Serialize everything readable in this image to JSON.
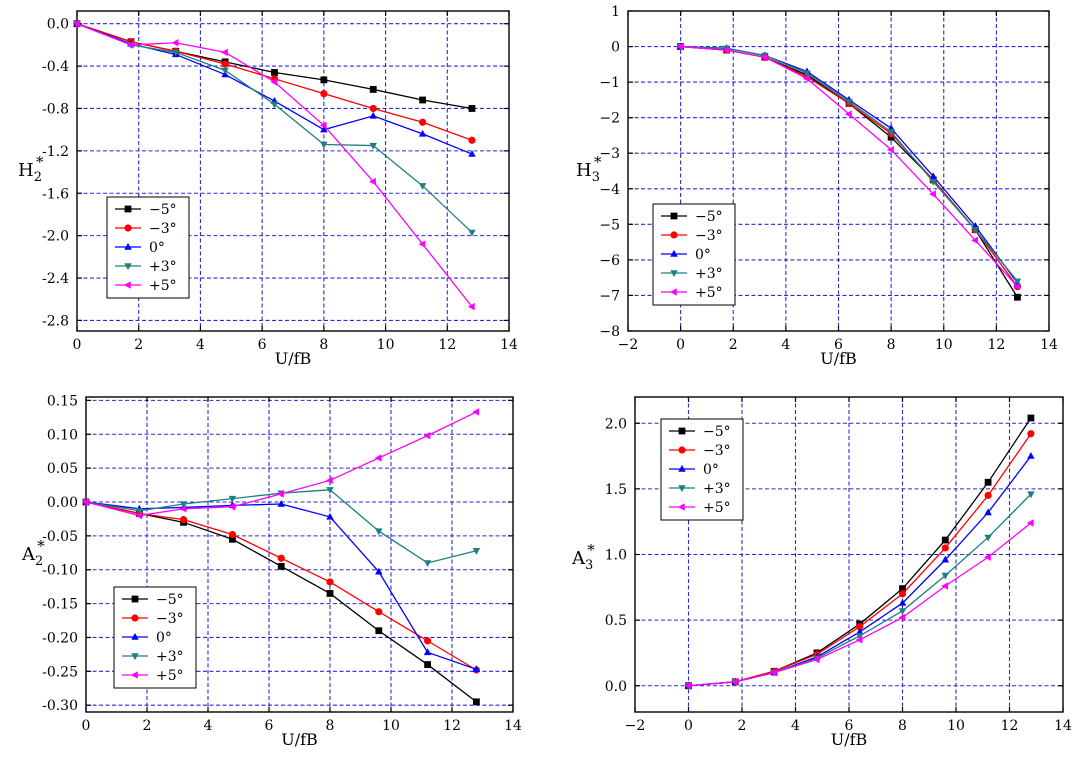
{
  "colors": {
    "grid": "#2a2ad8",
    "axis": "#000000",
    "series": [
      "#000000",
      "#ff0000",
      "#0000ff",
      "#1e7f7f",
      "#ff00ff"
    ]
  },
  "chart_data": [
    {
      "type": "line",
      "title": "",
      "xlabel": "U/fB",
      "ylabel_main": "H",
      "ylabel_sub": "2",
      "ylabel_sup": "*",
      "xlim": [
        0,
        14
      ],
      "ylim": [
        -2.9,
        0.12
      ],
      "xticks": [
        0,
        2,
        4,
        6,
        8,
        10,
        12,
        14
      ],
      "yticks": [
        0.0,
        -0.4,
        -0.8,
        -1.2,
        -1.6,
        -2.0,
        -2.4,
        -2.8
      ],
      "ytick_labels": [
        "0.0",
        "-0.4",
        "-0.8",
        "-1.2",
        "-1.6",
        "-2.0",
        "-2.4",
        "-2.8"
      ],
      "x": [
        0,
        1.75,
        3.2,
        4.8,
        6.4,
        8.0,
        9.6,
        11.2,
        12.8
      ],
      "legend_position": "bottom-left",
      "series": [
        {
          "name": "−5°",
          "marker": "square",
          "values": [
            0,
            -0.17,
            -0.26,
            -0.36,
            -0.46,
            -0.53,
            -0.62,
            -0.72,
            -0.8
          ]
        },
        {
          "name": "−3°",
          "marker": "circle",
          "values": [
            0,
            -0.17,
            -0.26,
            -0.38,
            -0.52,
            -0.66,
            -0.8,
            -0.93,
            -1.1
          ]
        },
        {
          "name": "0°",
          "marker": "triangle-up",
          "values": [
            0,
            -0.19,
            -0.29,
            -0.48,
            -0.73,
            -1.0,
            -0.87,
            -1.04,
            -1.23
          ]
        },
        {
          "name": "+3°",
          "marker": "triangle-down",
          "values": [
            0,
            -0.2,
            -0.27,
            -0.44,
            -0.76,
            -1.14,
            -1.15,
            -1.53,
            -1.97
          ]
        },
        {
          "name": "+5°",
          "marker": "triangle-left",
          "values": [
            0,
            -0.2,
            -0.18,
            -0.27,
            -0.55,
            -0.96,
            -1.49,
            -2.08,
            -2.67
          ]
        }
      ]
    },
    {
      "type": "line",
      "title": "",
      "xlabel": "U/fB",
      "ylabel_main": "H",
      "ylabel_sub": "3",
      "ylabel_sup": "*",
      "xlim": [
        -2,
        14
      ],
      "ylim": [
        -8,
        1
      ],
      "xticks": [
        -2,
        0,
        2,
        4,
        6,
        8,
        10,
        12,
        14
      ],
      "yticks": [
        1,
        0,
        -1,
        -2,
        -3,
        -4,
        -5,
        -6,
        -7,
        -8
      ],
      "ytick_labels": [
        "1",
        "0",
        "−1",
        "−2",
        "−3",
        "−4",
        "−5",
        "−6",
        "−7",
        "−8"
      ],
      "x": [
        0,
        1.75,
        3.2,
        4.8,
        6.4,
        8.0,
        9.6,
        11.2,
        12.8
      ],
      "legend_position": "bottom-left",
      "series": [
        {
          "name": "−5°",
          "marker": "square",
          "values": [
            0,
            -0.1,
            -0.3,
            -0.8,
            -1.6,
            -2.55,
            -3.75,
            -5.15,
            -7.05
          ]
        },
        {
          "name": "−3°",
          "marker": "circle",
          "values": [
            0,
            -0.1,
            -0.3,
            -0.85,
            -1.6,
            -2.45,
            -3.75,
            -5.15,
            -6.75
          ]
        },
        {
          "name": "0°",
          "marker": "triangle-up",
          "values": [
            0,
            -0.05,
            -0.25,
            -0.7,
            -1.5,
            -2.3,
            -3.65,
            -5.05,
            -6.65
          ]
        },
        {
          "name": "+3°",
          "marker": "triangle-down",
          "values": [
            0,
            -0.05,
            -0.25,
            -0.75,
            -1.55,
            -2.4,
            -3.8,
            -5.15,
            -6.6
          ]
        },
        {
          "name": "+5°",
          "marker": "triangle-left",
          "values": [
            0,
            -0.1,
            -0.3,
            -0.9,
            -1.9,
            -2.9,
            -4.15,
            -5.45,
            -6.75
          ]
        }
      ]
    },
    {
      "type": "line",
      "title": "",
      "xlabel": "U/fB",
      "ylabel_main": "A",
      "ylabel_sub": "2",
      "ylabel_sup": "*",
      "xlim": [
        0,
        14
      ],
      "ylim": [
        -0.31,
        0.155
      ],
      "xticks": [
        0,
        2,
        4,
        6,
        8,
        10,
        12,
        14
      ],
      "yticks": [
        0.15,
        0.1,
        0.05,
        0.0,
        -0.05,
        -0.1,
        -0.15,
        -0.2,
        -0.25,
        -0.3
      ],
      "ytick_labels": [
        "0.15",
        "0.10",
        "0.05",
        "0.00",
        "-0.05",
        "-0.10",
        "-0.15",
        "-0.20",
        "-0.25",
        "-0.30"
      ],
      "x": [
        0,
        1.75,
        3.2,
        4.8,
        6.4,
        8.0,
        9.6,
        11.2,
        12.8
      ],
      "legend_position": "bottom-left",
      "series": [
        {
          "name": "−5°",
          "marker": "square",
          "values": [
            0,
            -0.017,
            -0.03,
            -0.055,
            -0.095,
            -0.135,
            -0.19,
            -0.24,
            -0.295
          ]
        },
        {
          "name": "−3°",
          "marker": "circle",
          "values": [
            0,
            -0.017,
            -0.026,
            -0.048,
            -0.083,
            -0.118,
            -0.162,
            -0.205,
            -0.248
          ]
        },
        {
          "name": "0°",
          "marker": "triangle-up",
          "values": [
            0,
            -0.01,
            -0.008,
            -0.005,
            -0.003,
            -0.022,
            -0.103,
            -0.222,
            -0.247
          ]
        },
        {
          "name": "+3°",
          "marker": "triangle-down",
          "values": [
            0,
            -0.013,
            -0.003,
            0.005,
            0.013,
            0.018,
            -0.043,
            -0.09,
            -0.072
          ]
        },
        {
          "name": "+5°",
          "marker": "triangle-left",
          "values": [
            0,
            -0.02,
            -0.01,
            -0.007,
            0.012,
            0.032,
            0.065,
            0.098,
            0.133
          ]
        }
      ]
    },
    {
      "type": "line",
      "title": "",
      "xlabel": "U/fB",
      "ylabel_main": "A",
      "ylabel_sub": "3",
      "ylabel_sup": "*",
      "xlim": [
        -2,
        14
      ],
      "ylim": [
        -0.2,
        2.2
      ],
      "xticks": [
        -2,
        0,
        2,
        4,
        6,
        8,
        10,
        12,
        14
      ],
      "yticks": [
        2.0,
        1.5,
        1.0,
        0.5,
        0.0
      ],
      "ytick_labels": [
        "2.0",
        "1.5",
        "1.0",
        "0.5",
        "0.0"
      ],
      "x": [
        0,
        1.75,
        3.2,
        4.8,
        6.4,
        8.0,
        9.6,
        11.2,
        12.8
      ],
      "legend_position": "top-left",
      "series": [
        {
          "name": "−5°",
          "marker": "square",
          "values": [
            0,
            0.03,
            0.11,
            0.25,
            0.47,
            0.74,
            1.11,
            1.55,
            2.04
          ]
        },
        {
          "name": "−3°",
          "marker": "circle",
          "values": [
            0,
            0.03,
            0.11,
            0.24,
            0.45,
            0.7,
            1.05,
            1.45,
            1.92
          ]
        },
        {
          "name": "0°",
          "marker": "triangle-up",
          "values": [
            0,
            0.03,
            0.1,
            0.22,
            0.41,
            0.63,
            0.96,
            1.32,
            1.75
          ]
        },
        {
          "name": "+3°",
          "marker": "triangle-down",
          "values": [
            0,
            0.03,
            0.1,
            0.21,
            0.38,
            0.57,
            0.84,
            1.13,
            1.46
          ]
        },
        {
          "name": "+5°",
          "marker": "triangle-left",
          "values": [
            0,
            0.03,
            0.1,
            0.2,
            0.35,
            0.52,
            0.76,
            0.98,
            1.24
          ]
        }
      ]
    }
  ]
}
